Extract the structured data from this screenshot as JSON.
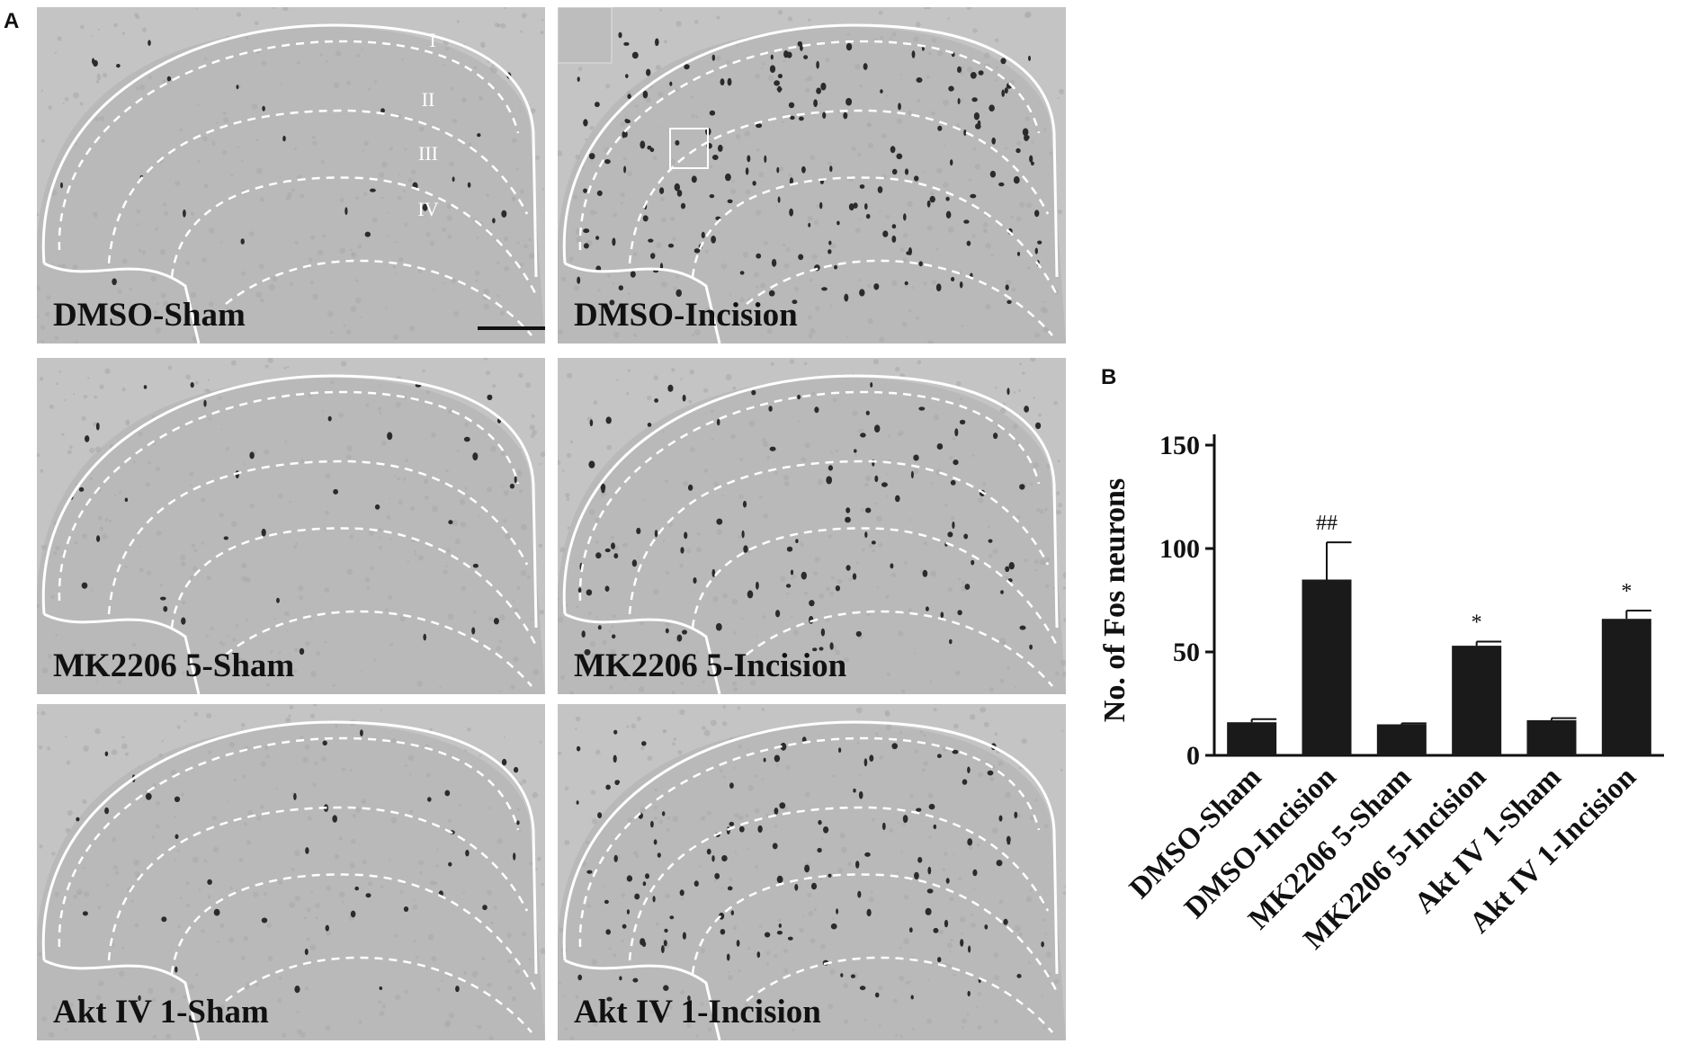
{
  "panels": {
    "a_letter": "A",
    "b_letter": "B"
  },
  "micrographs": [
    {
      "label": "DMSO-Sham"
    },
    {
      "label": "DMSO-Incision"
    },
    {
      "label": "MK2206 5-Sham"
    },
    {
      "label": "MK2206 5-Incision"
    },
    {
      "label": "Akt IV 1-Sham"
    },
    {
      "label": "Akt IV 1-Incision"
    }
  ],
  "layer_labels": [
    "I",
    "II",
    "III",
    "IV"
  ],
  "chart_data": {
    "type": "bar",
    "categories": [
      "DMSO-Sham",
      "DMSO-Incision",
      "MK2206 5-Sham",
      "MK2206 5-Incision",
      "Akt IV 1-Sham",
      "Akt IV 1-Incision"
    ],
    "values": [
      16,
      85,
      15,
      53,
      17,
      66
    ],
    "errors": [
      1.5,
      18,
      0.5,
      2,
      1,
      4
    ],
    "annotations": [
      "",
      "##",
      "",
      "*",
      "",
      "*"
    ],
    "ylabel": "No. of Fos neurons",
    "xlabel": "",
    "ylim": [
      0,
      150
    ],
    "yticks": [
      0,
      50,
      100,
      150
    ],
    "bar_color": "#1a1a1a",
    "grid": false
  }
}
